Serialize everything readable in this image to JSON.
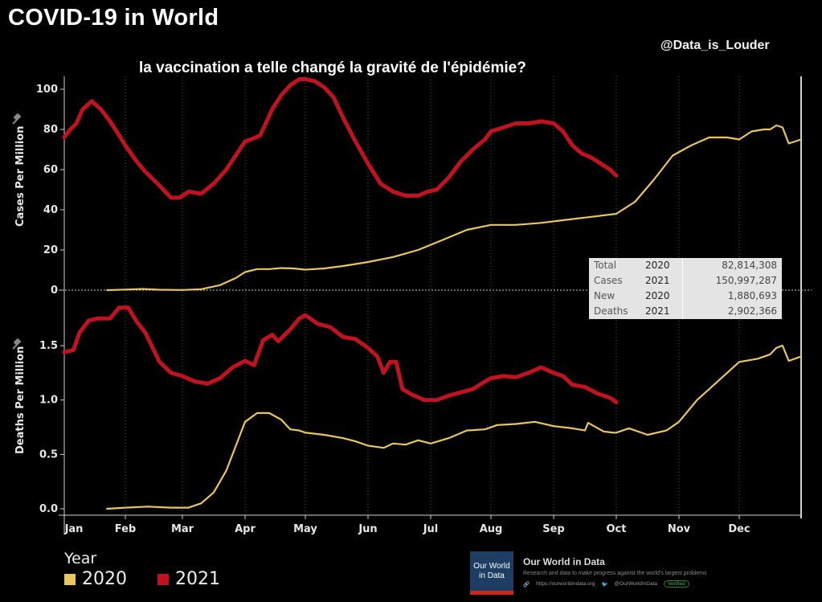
{
  "header": {
    "title": "COVID-19 in World",
    "handle": "@Data_is_Louder",
    "subtitle": "la vaccination  a telle changé la  gravité de l'épidémie?"
  },
  "colors": {
    "y2020": "#e8c660",
    "y2021": "#c0121f",
    "background": "#000000",
    "grid": "#555555"
  },
  "stats_box": {
    "rows": [
      {
        "label": "Total Cases",
        "year": "2020",
        "value": "82,814,308"
      },
      {
        "label": "",
        "year": "2021",
        "value": "150,997,287"
      },
      {
        "label": "New Deaths",
        "year": "2020",
        "value": "1,880,693"
      },
      {
        "label": "",
        "year": "2021",
        "value": "2,902,366"
      }
    ],
    "labels": {
      "cases_1": "Total",
      "cases_2": "Cases",
      "deaths_1": "New",
      "deaths_2": "Deaths"
    }
  },
  "legend": {
    "title": "Year",
    "items": [
      {
        "label": "2020",
        "color": "#e8c660"
      },
      {
        "label": "2021",
        "color": "#c0121f"
      }
    ]
  },
  "source": {
    "logo_text_1": "Our World",
    "logo_text_2": "in Data",
    "name": "Our World in Data",
    "description": "Research and data to make progress against the world's largest problems",
    "url": "https://ourworldindata.org",
    "twitter": "@OurWorldInData",
    "badge": "Verified"
  },
  "chart_data": [
    {
      "type": "line",
      "title": "Cases Per Million",
      "ylabel": "Cases Per Million",
      "xlabel": "",
      "x_ticks": [
        "Jan",
        "Feb",
        "Mar",
        "Apr",
        "May",
        "Jun",
        "Jul",
        "Aug",
        "Sep",
        "Oct",
        "Nov",
        "Dec"
      ],
      "y_ticks": [
        "0",
        "20",
        "40",
        "60",
        "80",
        "100"
      ],
      "ylim": [
        0,
        110
      ],
      "xlim_months": [
        0,
        12
      ],
      "grid": "vertical dotted",
      "series": [
        {
          "name": "2021",
          "x_months": [
            0,
            0.1,
            0.2,
            0.3,
            0.45,
            0.6,
            0.75,
            0.9,
            1.0,
            1.2,
            1.35,
            1.6,
            1.8,
            1.95,
            2.1,
            2.3,
            2.5,
            2.7,
            2.85,
            3.0,
            3.1,
            3.25,
            3.45,
            3.6,
            3.75,
            3.9,
            4.0,
            4.15,
            4.3,
            4.45,
            4.6,
            4.8,
            5.0,
            5.2,
            5.4,
            5.6,
            5.8,
            5.95,
            6.1,
            6.3,
            6.5,
            6.7,
            6.9,
            7.0,
            7.2,
            7.4,
            7.6,
            7.8,
            8.0,
            8.15,
            8.3,
            8.45,
            8.6,
            8.75,
            8.9,
            9.0
          ],
          "values": [
            76,
            80,
            83,
            90,
            94,
            90,
            84,
            77,
            72,
            64,
            59,
            52,
            46,
            46,
            49,
            48,
            53,
            60,
            67,
            74,
            75,
            77,
            90,
            97,
            102,
            105,
            105,
            104,
            101,
            96,
            86,
            74,
            63,
            53,
            49,
            47,
            47,
            49,
            50,
            56,
            64,
            70,
            75,
            79,
            81,
            83,
            83,
            84,
            83,
            79,
            72,
            68,
            66,
            63,
            60,
            57
          ]
        },
        {
          "name": "2020",
          "x_months": [
            0.7,
            1.0,
            1.3,
            1.6,
            2.0,
            2.3,
            2.6,
            2.85,
            3.0,
            3.2,
            3.4,
            3.6,
            3.8,
            4.0,
            4.3,
            4.6,
            5.0,
            5.4,
            5.8,
            6.2,
            6.6,
            7.0,
            7.4,
            7.8,
            8.2,
            8.6,
            9.0,
            9.3,
            9.6,
            9.9,
            10.2,
            10.5,
            10.8,
            11.0,
            11.2,
            11.4,
            11.5,
            11.6,
            11.7,
            11.8,
            12.0
          ],
          "values": [
            0,
            0.3,
            0.6,
            0.2,
            0.1,
            0.5,
            2.5,
            6,
            9,
            10.5,
            10.5,
            11,
            10.8,
            10.2,
            10.8,
            12,
            14,
            16.5,
            20,
            25,
            30,
            32.5,
            32.5,
            33.5,
            35,
            36.5,
            38,
            44,
            55,
            67,
            72,
            76,
            76,
            75,
            79,
            80,
            80,
            82,
            81,
            73,
            75
          ]
        }
      ]
    },
    {
      "type": "line",
      "title": "Deaths Per Million",
      "ylabel": "Deaths Per Million",
      "xlabel": "",
      "x_ticks": [
        "Jan",
        "Feb",
        "Mar",
        "Apr",
        "May",
        "Jun",
        "Jul",
        "Aug",
        "Sep",
        "Oct",
        "Nov",
        "Dec"
      ],
      "y_ticks": [
        "0.0",
        "0.5",
        "1.0",
        "1.5"
      ],
      "ylim": [
        0,
        1.9
      ],
      "xlim_months": [
        0,
        12
      ],
      "grid": "vertical dotted",
      "series": [
        {
          "name": "2021",
          "x_months": [
            0,
            0.15,
            0.25,
            0.4,
            0.55,
            0.75,
            0.9,
            1.05,
            1.2,
            1.35,
            1.6,
            1.8,
            2.0,
            2.2,
            2.4,
            2.6,
            2.8,
            3.0,
            3.15,
            3.3,
            3.45,
            3.55,
            3.75,
            3.9,
            4.0,
            4.2,
            4.4,
            4.6,
            4.8,
            5.0,
            5.15,
            5.25,
            5.35,
            5.45,
            5.55,
            5.7,
            5.9,
            6.1,
            6.3,
            6.5,
            6.7,
            6.9,
            7.0,
            7.2,
            7.4,
            7.6,
            7.8,
            8.0,
            8.15,
            8.3,
            8.5,
            8.7,
            8.9,
            9.0
          ],
          "values": [
            1.44,
            1.46,
            1.62,
            1.73,
            1.75,
            1.75,
            1.85,
            1.85,
            1.72,
            1.62,
            1.35,
            1.25,
            1.22,
            1.17,
            1.15,
            1.2,
            1.3,
            1.36,
            1.32,
            1.55,
            1.6,
            1.54,
            1.65,
            1.75,
            1.78,
            1.7,
            1.67,
            1.58,
            1.56,
            1.48,
            1.4,
            1.25,
            1.35,
            1.35,
            1.1,
            1.05,
            1.0,
            1.0,
            1.04,
            1.07,
            1.1,
            1.17,
            1.2,
            1.22,
            1.21,
            1.25,
            1.3,
            1.25,
            1.22,
            1.14,
            1.12,
            1.06,
            1.02,
            0.98
          ]
        },
        {
          "name": "2020",
          "x_months": [
            0.7,
            1.0,
            1.4,
            1.8,
            2.1,
            2.3,
            2.5,
            2.7,
            2.9,
            3.0,
            3.2,
            3.4,
            3.6,
            3.75,
            3.9,
            4.0,
            4.3,
            4.6,
            4.8,
            5.0,
            5.25,
            5.4,
            5.6,
            5.8,
            6.0,
            6.3,
            6.6,
            6.9,
            7.1,
            7.4,
            7.7,
            8.0,
            8.3,
            8.5,
            8.55,
            8.8,
            8.95,
            9.0,
            9.2,
            9.3,
            9.5,
            9.8,
            10.0,
            10.3,
            10.6,
            10.9,
            11.0,
            11.3,
            11.5,
            11.6,
            11.7,
            11.8,
            12.0
          ],
          "values": [
            0,
            0.01,
            0.02,
            0.01,
            0.01,
            0.05,
            0.15,
            0.35,
            0.65,
            0.8,
            0.88,
            0.88,
            0.82,
            0.73,
            0.72,
            0.7,
            0.68,
            0.65,
            0.62,
            0.58,
            0.56,
            0.6,
            0.59,
            0.63,
            0.6,
            0.65,
            0.72,
            0.73,
            0.77,
            0.78,
            0.8,
            0.76,
            0.74,
            0.72,
            0.79,
            0.71,
            0.7,
            0.7,
            0.74,
            0.72,
            0.68,
            0.72,
            0.8,
            1.0,
            1.15,
            1.3,
            1.35,
            1.38,
            1.42,
            1.48,
            1.5,
            1.36,
            1.4
          ]
        }
      ]
    }
  ]
}
